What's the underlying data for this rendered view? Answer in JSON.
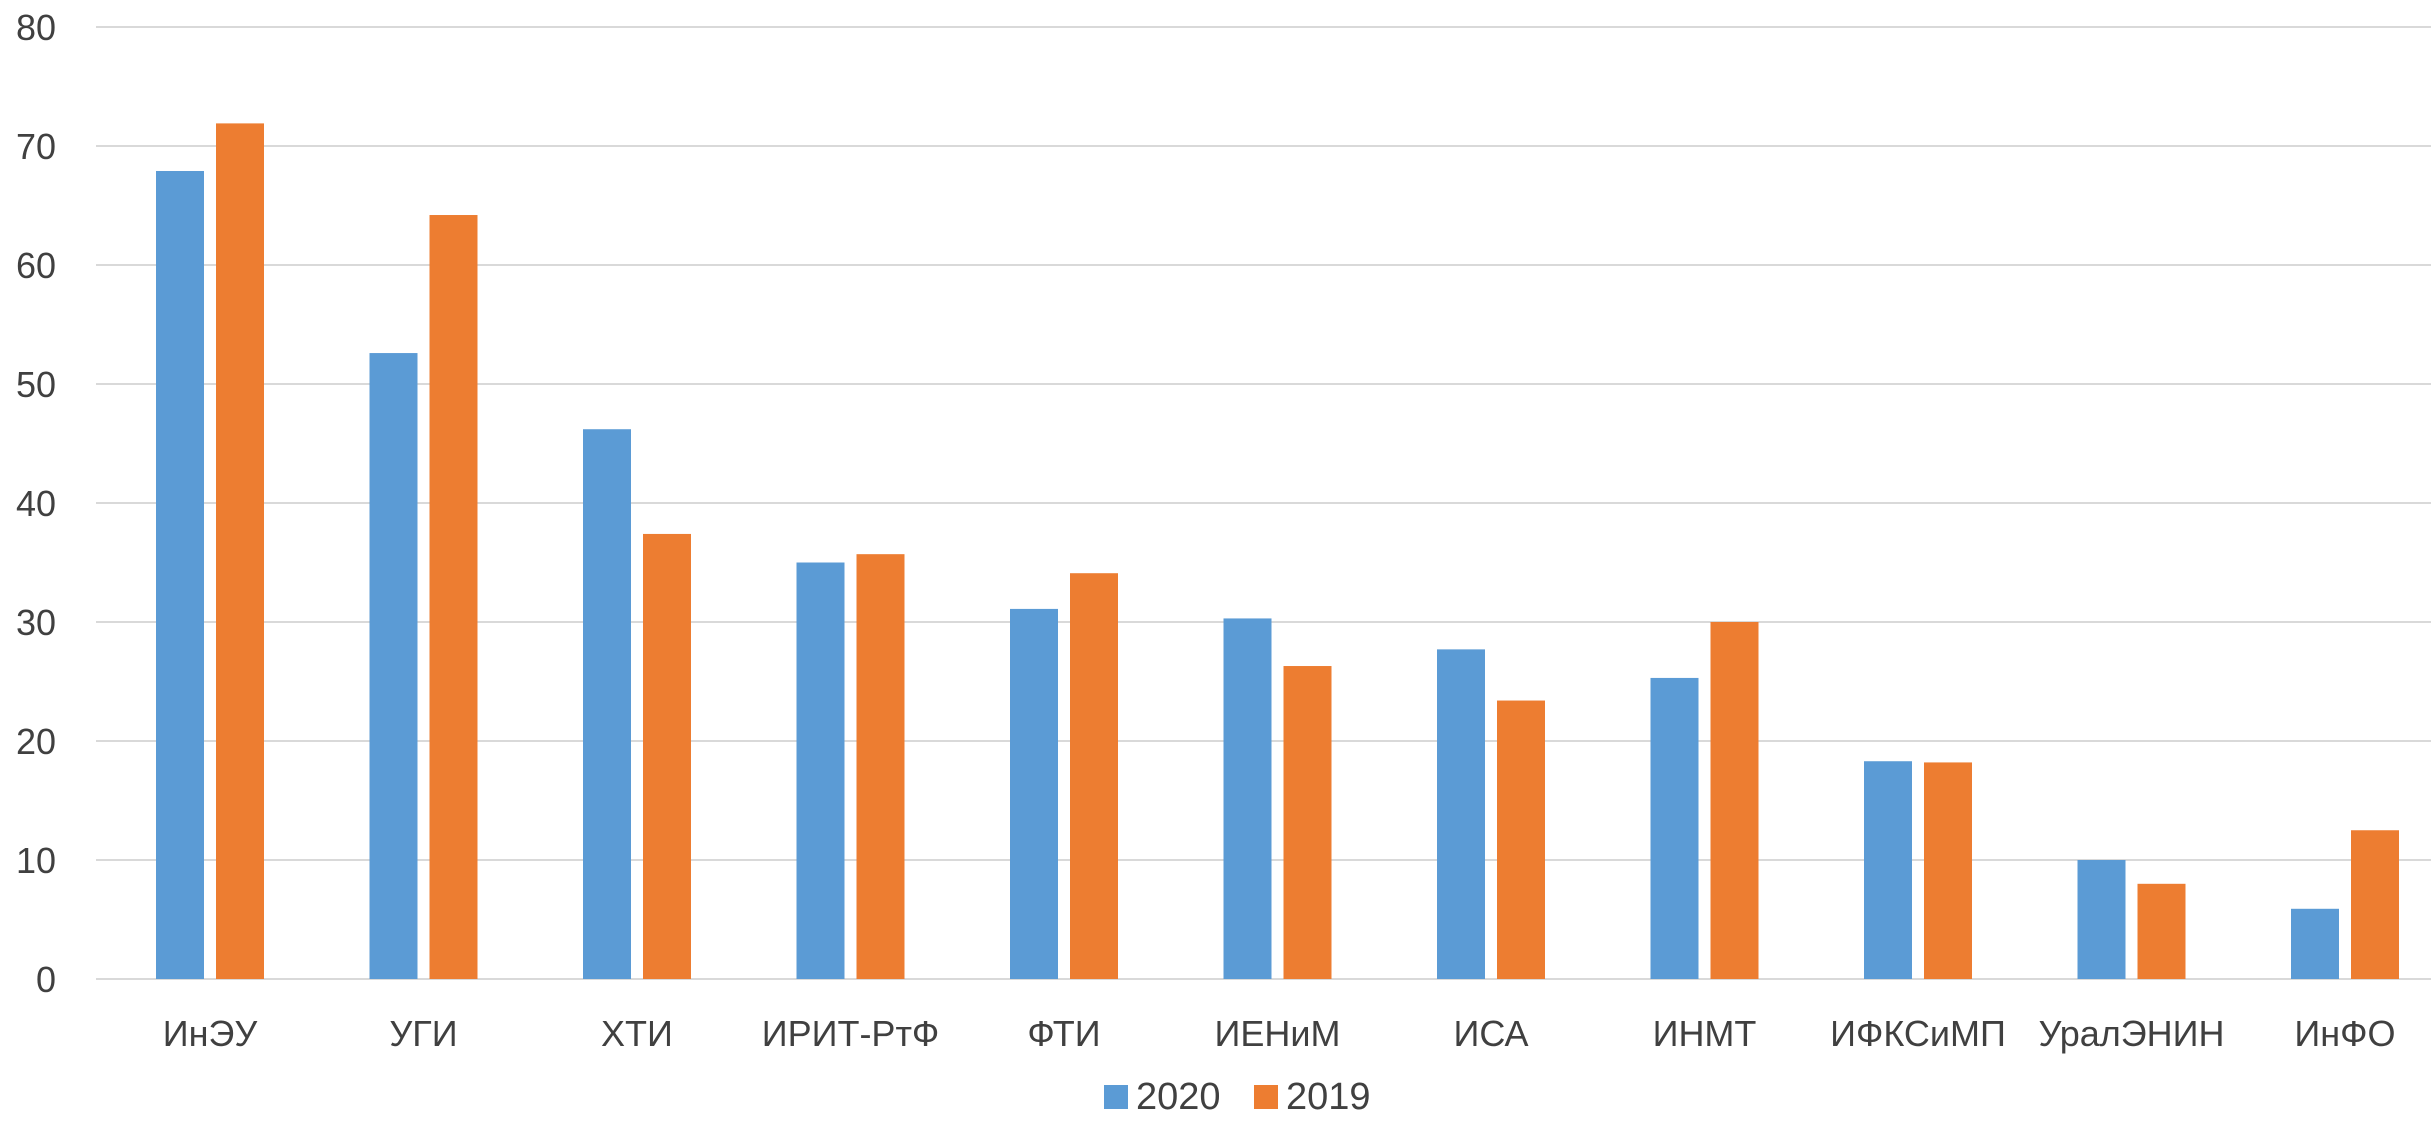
{
  "chart_data": {
    "type": "bar",
    "title": "",
    "xlabel": "",
    "ylabel": "",
    "ylim": [
      0,
      80
    ],
    "yticks": [
      0,
      10,
      20,
      30,
      40,
      50,
      60,
      70,
      80
    ],
    "grid": true,
    "legend": "bottom-center",
    "categories": [
      "ИнЭУ",
      "УГИ",
      "ХТИ",
      "ИРИТ-РтФ",
      "ФТИ",
      "ИЕНиМ",
      "ИСА",
      "ИНМТ",
      "ИФКСиМП",
      "УралЭНИН",
      "ИнФО"
    ],
    "series": [
      {
        "name": "2020",
        "color": "#5b9bd5",
        "values": [
          67.9,
          52.6,
          46.2,
          35.0,
          31.1,
          30.3,
          27.7,
          25.3,
          18.3,
          10.0,
          5.9
        ]
      },
      {
        "name": "2019",
        "color": "#ed7d31",
        "values": [
          71.9,
          64.2,
          37.4,
          35.7,
          34.1,
          26.3,
          23.4,
          30.0,
          18.2,
          8.0,
          12.5
        ]
      }
    ]
  }
}
